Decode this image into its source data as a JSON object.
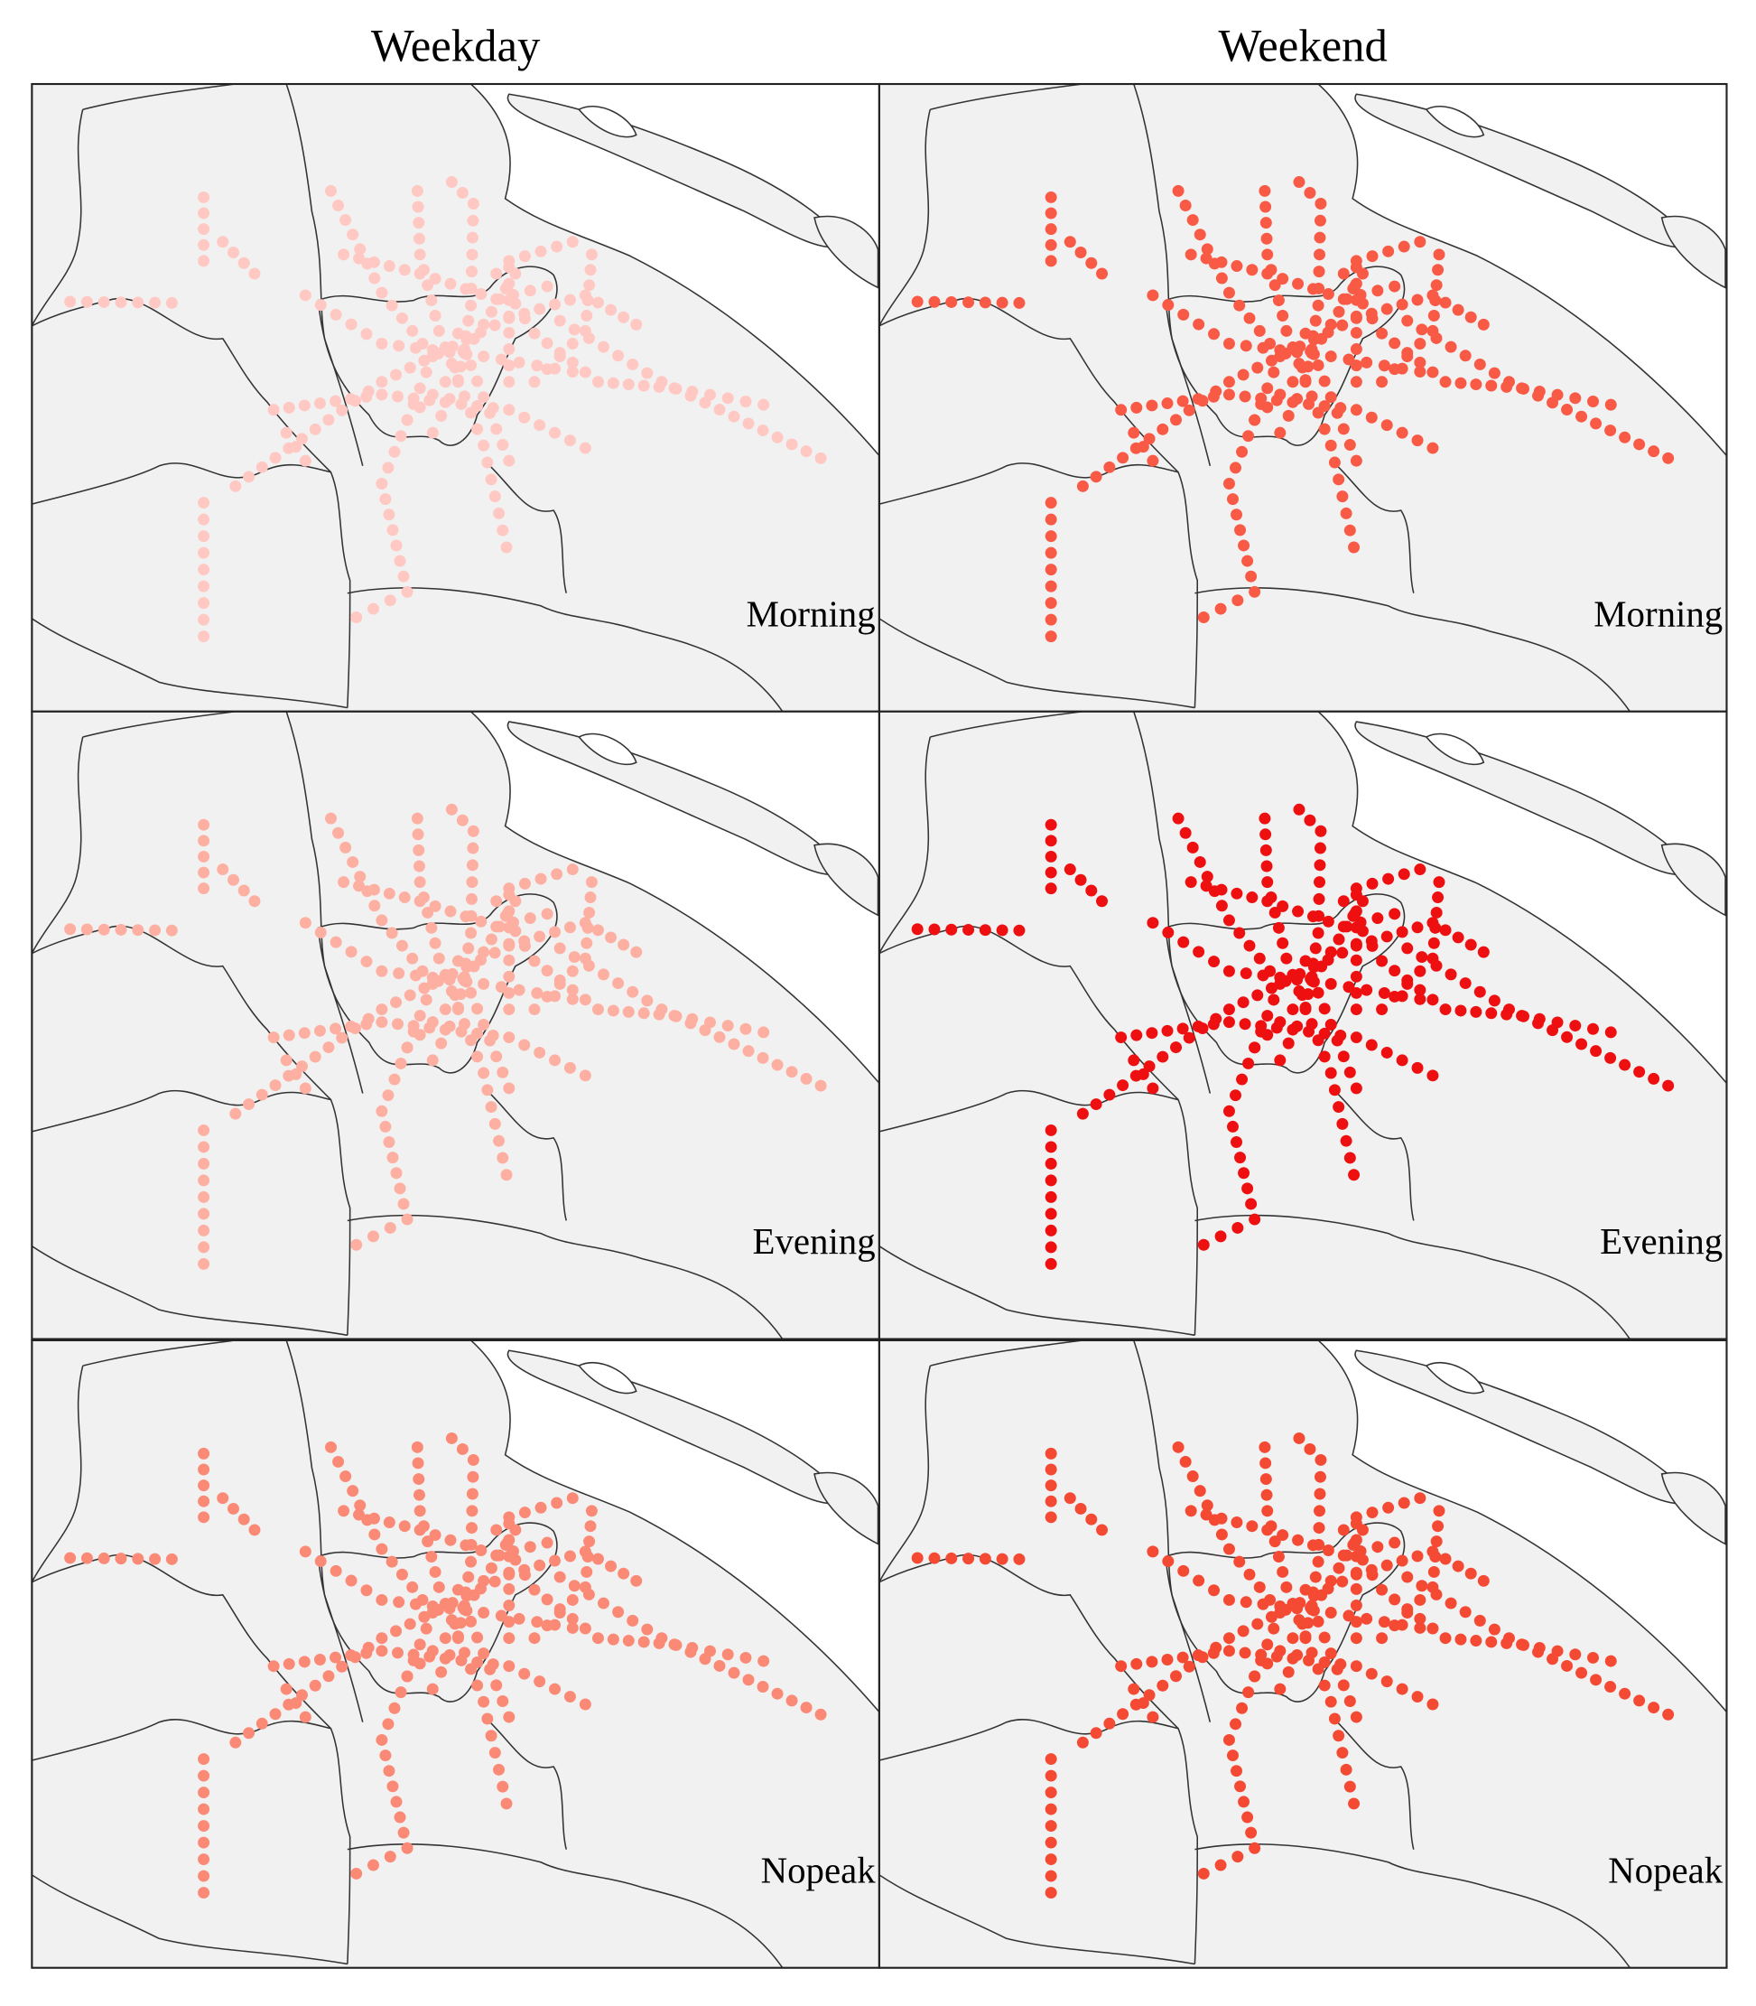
{
  "columns": [
    {
      "title": "Weekday"
    },
    {
      "title": "Weekend"
    }
  ],
  "rows": [
    {
      "label": "Morning"
    },
    {
      "label": "Evening"
    },
    {
      "label": "Nopeak"
    }
  ],
  "panels": [
    [
      {
        "color": "#ffc8c2"
      },
      {
        "color": "#f85a46"
      }
    ],
    [
      {
        "color": "#fdb0a2"
      },
      {
        "color": "#ee1010"
      }
    ],
    [
      {
        "color": "#fa8a76"
      },
      {
        "color": "#f44a34"
      }
    ]
  ]
}
